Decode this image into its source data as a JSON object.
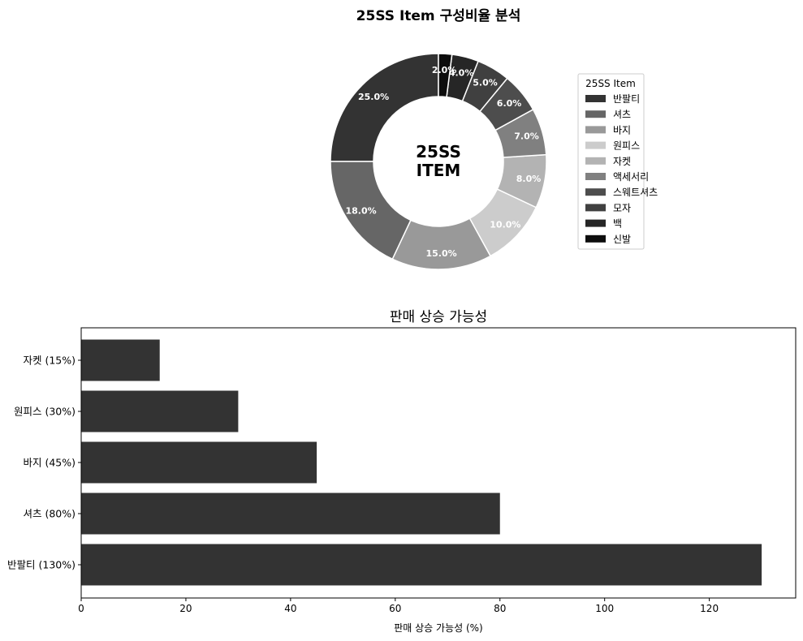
{
  "chart_data": [
    {
      "type": "pie",
      "title": "25SS Item 구성비율 분석",
      "center_label": [
        "25SS",
        "ITEM"
      ],
      "legend_title": "25SS Item",
      "legend_position": "right",
      "categories": [
        "반팔티",
        "셔츠",
        "바지",
        "원피스",
        "자켓",
        "액세서리",
        "스웨트셔츠",
        "모자",
        "백",
        "신발"
      ],
      "values": [
        25.0,
        18.0,
        15.0,
        10.0,
        8.0,
        7.0,
        6.0,
        5.0,
        4.0,
        2.0
      ],
      "labels": [
        "25.0%",
        "18.0%",
        "15.0%",
        "10.0%",
        "8.0%",
        "7.0%",
        "6.0%",
        "5.0%",
        "4.0%",
        "2.0%"
      ],
      "colors": [
        "#333333",
        "#666666",
        "#999999",
        "#cccccc",
        "#b3b3b3",
        "#808080",
        "#4d4d4d",
        "#404040",
        "#262626",
        "#0d0d0d"
      ]
    },
    {
      "type": "bar",
      "orientation": "horizontal",
      "title": "판매 상승 가능성",
      "xlabel": "판매 상승 가능성 (%)",
      "ylabel": "",
      "categories": [
        "반팔티 (130%)",
        "셔츠 (80%)",
        "바지 (45%)",
        "원피스 (30%)",
        "자켓 (15%)"
      ],
      "values": [
        130,
        80,
        45,
        30,
        15
      ],
      "xticks": [
        0,
        20,
        40,
        60,
        80,
        100,
        120
      ],
      "xlim": [
        0,
        136.5
      ],
      "bar_color": "#333333",
      "grid": false
    }
  ]
}
